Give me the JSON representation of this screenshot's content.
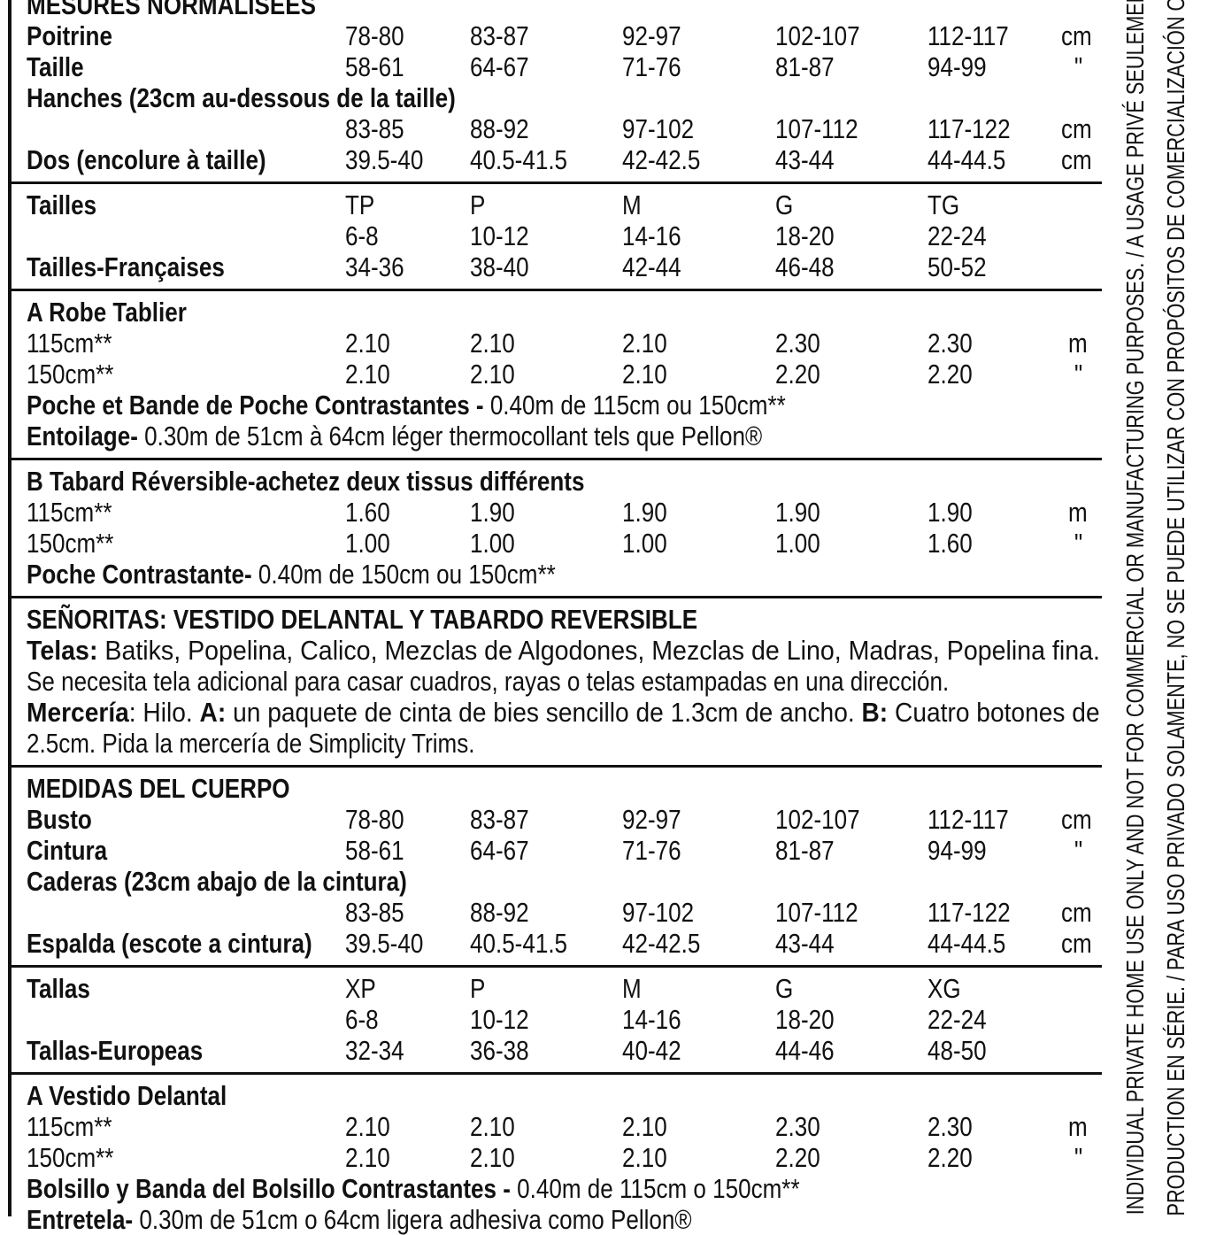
{
  "sections": [
    {
      "rows": [
        {
          "runs": [
            [
              "MESURES NORMALISÉES",
              true
            ]
          ]
        },
        {
          "runs": [
            [
              "Poitrine",
              true
            ]
          ],
          "values": [
            "78-80",
            "83-87",
            "92-97",
            "102-107",
            "112-117"
          ],
          "unit": "cm"
        },
        {
          "runs": [
            [
              "Taille",
              true
            ]
          ],
          "values": [
            "58-61",
            "64-67",
            "71-76",
            "81-87",
            "94-99"
          ],
          "unit": "\""
        },
        {
          "runs": [
            [
              "Hanches (23cm au-dessous de la taille)",
              true
            ]
          ]
        },
        {
          "runs": [],
          "values": [
            "83-85",
            "88-92",
            "97-102",
            "107-112",
            "117-122"
          ],
          "unit": "cm"
        },
        {
          "runs": [
            [
              "Dos (encolure à taille)",
              true
            ]
          ],
          "values": [
            "39.5-40",
            "40.5-41.5",
            "42-42.5",
            "43-44",
            "44-44.5"
          ],
          "unit": "cm"
        }
      ]
    },
    {
      "rows": [
        {
          "runs": [
            [
              "Tailles",
              true
            ]
          ],
          "values": [
            "TP",
            "P",
            "M",
            "G",
            "TG"
          ]
        },
        {
          "runs": [],
          "values": [
            "6-8",
            "10-12",
            "14-16",
            "18-20",
            "22-24"
          ]
        },
        {
          "runs": [
            [
              "Tailles-Françaises",
              true
            ]
          ],
          "values": [
            "34-36",
            "38-40",
            "42-44",
            "46-48",
            "50-52"
          ]
        }
      ]
    },
    {
      "rows": [
        {
          "runs": [
            [
              "A Robe Tablier",
              true
            ]
          ]
        },
        {
          "runs": [
            [
              "115cm**",
              false
            ]
          ],
          "values": [
            "2.10",
            "2.10",
            "2.10",
            "2.30",
            "2.30"
          ],
          "unit": "m"
        },
        {
          "runs": [
            [
              "150cm**",
              false
            ]
          ],
          "values": [
            "2.10",
            "2.10",
            "2.10",
            "2.20",
            "2.20"
          ],
          "unit": "\""
        },
        {
          "runs": [
            [
              "Poche et Bande de Poche Contrastantes - ",
              true
            ],
            [
              "0.40m de 115cm ou 150cm**",
              false
            ]
          ]
        },
        {
          "runs": [
            [
              "Entoilage- ",
              true
            ],
            [
              "0.30m de 51cm à 64cm léger thermocollant tels que Pellon®",
              false
            ]
          ]
        }
      ]
    },
    {
      "rows": [
        {
          "runs": [
            [
              "B Tabard Réversible-achetez deux tissus différents",
              true
            ]
          ]
        },
        {
          "runs": [
            [
              "115cm**",
              false
            ]
          ],
          "values": [
            "1.60",
            "1.90",
            "1.90",
            "1.90",
            "1.90"
          ],
          "unit": "m"
        },
        {
          "runs": [
            [
              "150cm**",
              false
            ]
          ],
          "values": [
            "1.00",
            "1.00",
            "1.00",
            "1.00",
            "1.60"
          ],
          "unit": "\""
        },
        {
          "runs": [
            [
              "Poche Contrastante- ",
              true
            ],
            [
              "0.40m de 150cm ou 150cm**",
              false
            ]
          ]
        }
      ]
    },
    {
      "rows": [
        {
          "runs": [
            [
              "SEÑORITAS: VESTIDO DELANTAL Y TABARDO REVERSIBLE",
              true
            ]
          ]
        },
        {
          "runs": [
            [
              "Telas: ",
              true
            ],
            [
              "Batiks, Popelina, Calico, Mezclas de Algodones, Mezclas de Lino, Madras, Popelina fina.",
              false
            ]
          ],
          "full": true
        },
        {
          "runs": [
            [
              "Se necesita tela adicional para casar cuadros, rayas o telas estampadas en una dirección.",
              false
            ]
          ]
        },
        {
          "runs": [
            [
              "Mercería",
              true
            ],
            [
              ": Hilo. ",
              false
            ],
            [
              "A:",
              true
            ],
            [
              " un paquete de cinta de bies sencillo de 1.3cm de ancho. ",
              false
            ],
            [
              "B:",
              true
            ],
            [
              " Cuatro botones de",
              false
            ]
          ],
          "full": true
        },
        {
          "runs": [
            [
              "2.5cm. Pida la mercería de Simplicity Trims.",
              false
            ]
          ]
        }
      ]
    },
    {
      "rows": [
        {
          "runs": [
            [
              "MEDIDAS DEL CUERPO",
              true
            ]
          ]
        },
        {
          "runs": [
            [
              "Busto",
              true
            ]
          ],
          "values": [
            "78-80",
            "83-87",
            "92-97",
            "102-107",
            "112-117"
          ],
          "unit": "cm"
        },
        {
          "runs": [
            [
              "Cintura",
              true
            ]
          ],
          "values": [
            "58-61",
            "64-67",
            "71-76",
            "81-87",
            "94-99"
          ],
          "unit": "\""
        },
        {
          "runs": [
            [
              "Caderas (23cm abajo de la cintura)",
              true
            ]
          ]
        },
        {
          "runs": [],
          "values": [
            "83-85",
            "88-92",
            "97-102",
            "107-112",
            "117-122"
          ],
          "unit": "cm"
        },
        {
          "runs": [
            [
              "Espalda (escote a cintura)",
              true
            ]
          ],
          "values": [
            "39.5-40",
            "40.5-41.5",
            "42-42.5",
            "43-44",
            "44-44.5"
          ],
          "unit": "cm"
        }
      ]
    },
    {
      "rows": [
        {
          "runs": [
            [
              "Tallas",
              true
            ]
          ],
          "values": [
            "XP",
            "P",
            "M",
            "G",
            "XG"
          ]
        },
        {
          "runs": [],
          "values": [
            "6-8",
            "10-12",
            "14-16",
            "18-20",
            "22-24"
          ]
        },
        {
          "runs": [
            [
              "Tallas-Europeas",
              true
            ]
          ],
          "values": [
            "32-34",
            "36-38",
            "40-42",
            "44-46",
            "48-50"
          ]
        }
      ]
    },
    {
      "rows": [
        {
          "runs": [
            [
              "A Vestido Delantal",
              true
            ]
          ]
        },
        {
          "runs": [
            [
              "115cm**",
              false
            ]
          ],
          "values": [
            "2.10",
            "2.10",
            "2.10",
            "2.30",
            "2.30"
          ],
          "unit": "m"
        },
        {
          "runs": [
            [
              "150cm**",
              false
            ]
          ],
          "values": [
            "2.10",
            "2.10",
            "2.10",
            "2.20",
            "2.20"
          ],
          "unit": "\""
        },
        {
          "runs": [
            [
              "Bolsillo y Banda del Bolsillo Contrastantes - ",
              true
            ],
            [
              "0.40m de 115cm o 150cm**",
              false
            ]
          ]
        },
        {
          "runs": [
            [
              "Entretela- ",
              true
            ],
            [
              "0.30m de 51cm o 64cm ligera adhesiva como Pellon®",
              false
            ]
          ]
        }
      ]
    }
  ],
  "side_notice": {
    "line1": "R INDIVIDUAL PRIVATE HOME USE ONLY AND NOT FOR COMMERCIAL OR MANUFACTURING PURPOSES. / A USAGE PRIVÉ SEULEMENT",
    "line2": "E PRODUCTION EN SÉRIE. / PARA USO PRIVADO SOLAMENTE, NO SE PUEDE UTILIZAR CON PROPÓSITOS DE COMERCIALIZACIÓN O D"
  }
}
